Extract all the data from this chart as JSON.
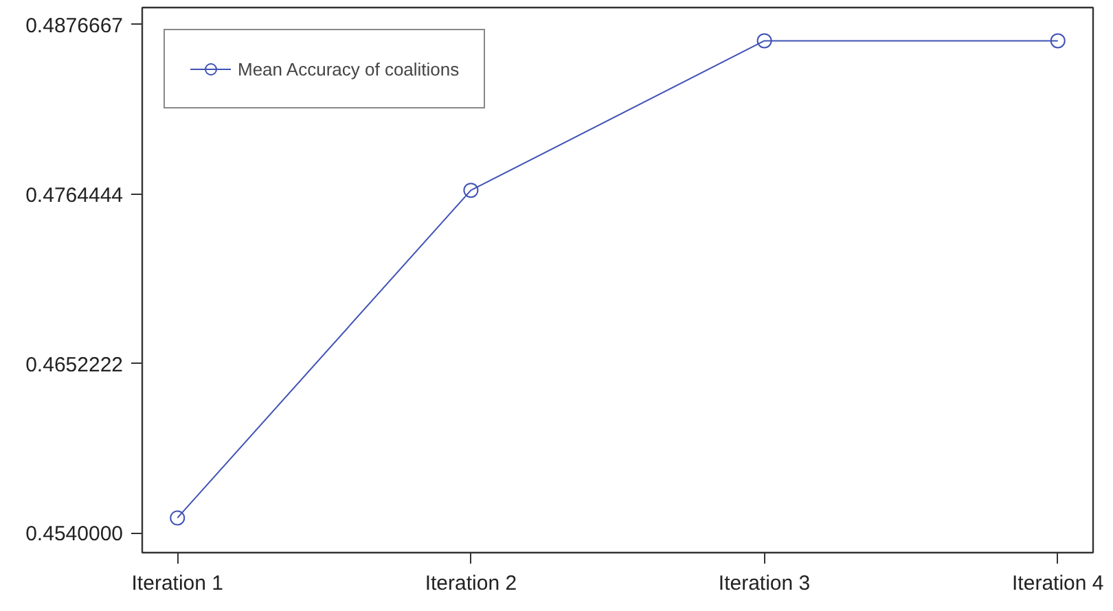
{
  "chart_data": {
    "type": "line",
    "categories": [
      "Iteration 1",
      "Iteration 2",
      "Iteration 3",
      "Iteration 4"
    ],
    "series": [
      {
        "name": "Mean Accuracy of coalitions",
        "color": "#3f51b5",
        "values": [
          0.455,
          0.4767,
          0.4866,
          0.4866
        ]
      }
    ],
    "ylim": [
      0.4527,
      0.4888
    ],
    "yticks": [
      {
        "value": 0.454,
        "label": "0.4540000"
      },
      {
        "value": 0.4652222,
        "label": "0.4652222"
      },
      {
        "value": 0.4764444,
        "label": "0.4764444"
      },
      {
        "value": 0.4876667,
        "label": "0.4876667"
      }
    ],
    "marker": "circle",
    "line_style": "solid",
    "legend": "top left"
  }
}
